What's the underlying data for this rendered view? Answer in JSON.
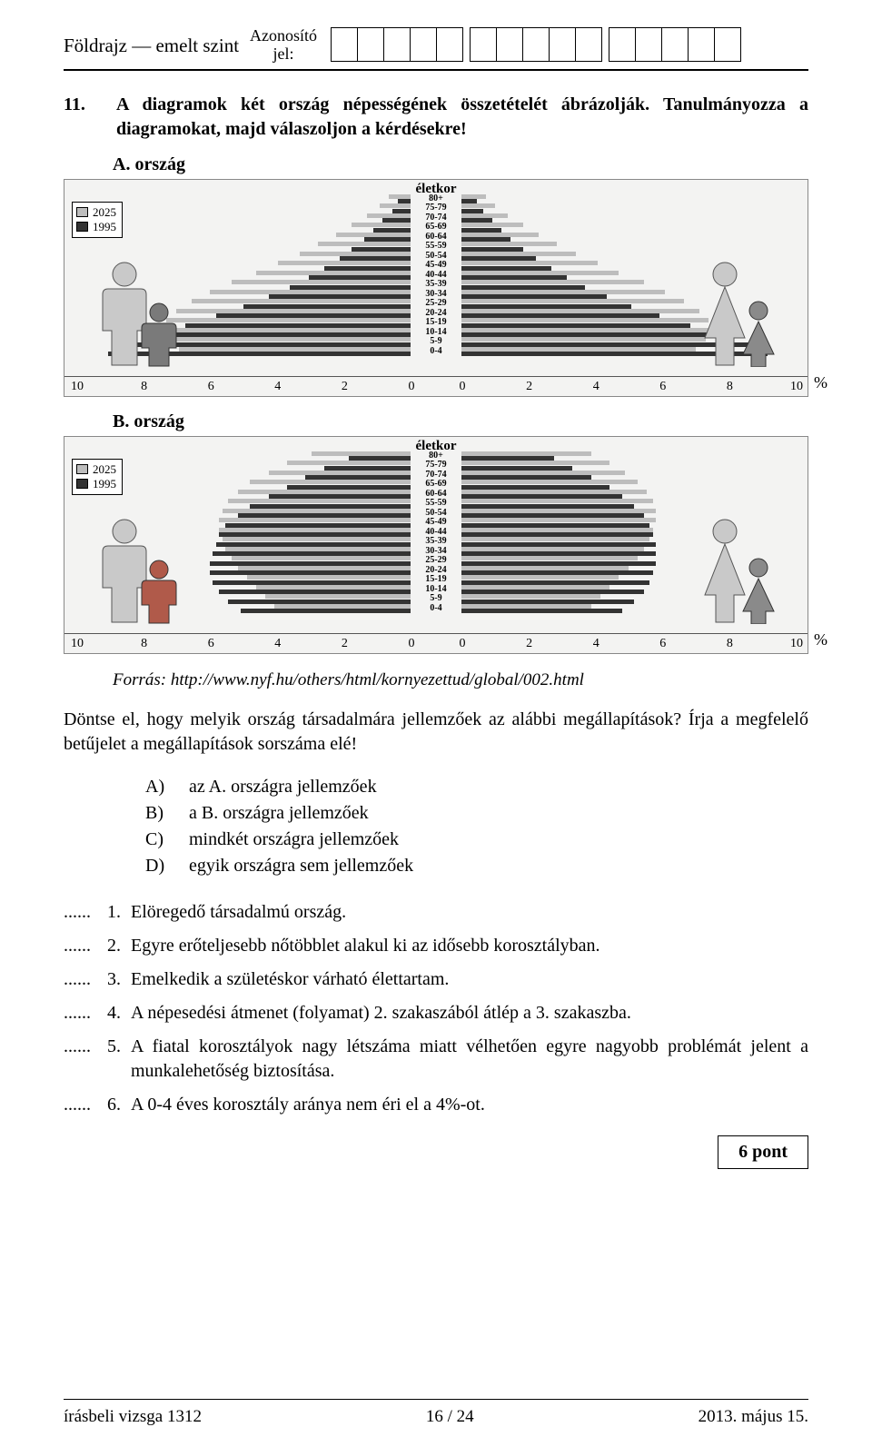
{
  "header": {
    "subject": "Földrajz — emelt szint",
    "id_label_1": "Azonosító",
    "id_label_2": "jel:"
  },
  "task": {
    "number": "11.",
    "prompt": "A diagramok két ország népességének összetételét ábrázolják. Tanulmányozza a diagramokat, majd válaszoljon a kérdésekre!",
    "labelA": "A. ország",
    "labelB": "B. ország"
  },
  "pyramid": {
    "axis_title": "életkor",
    "age_labels": [
      "80+",
      "75-79",
      "70-74",
      "65-69",
      "60-64",
      "55-59",
      "50-54",
      "45-49",
      "40-44",
      "35-39",
      "30-34",
      "25-29",
      "20-24",
      "15-19",
      "10-14",
      "5-9",
      "0-4"
    ],
    "xticks_left": [
      {
        "v": "10",
        "pos": 0
      },
      {
        "v": "8",
        "pos": 20
      },
      {
        "v": "6",
        "pos": 40
      },
      {
        "v": "4",
        "pos": 60
      },
      {
        "v": "2",
        "pos": 80
      },
      {
        "v": "0",
        "pos": 100
      }
    ],
    "xticks_right": [
      {
        "v": "0",
        "pos": 0
      },
      {
        "v": "2",
        "pos": 20
      },
      {
        "v": "4",
        "pos": 40
      },
      {
        "v": "6",
        "pos": 60
      },
      {
        "v": "8",
        "pos": 80
      },
      {
        "v": "10",
        "pos": 100
      }
    ],
    "xlim": [
      0,
      10
    ],
    "pct": "%",
    "legend": {
      "y2025": "2025",
      "y1995": "1995",
      "c2025": "#bdbdbd",
      "c1995": "#333333"
    },
    "A": {
      "male_1995": [
        0.4,
        0.6,
        0.9,
        1.2,
        1.5,
        1.9,
        2.3,
        2.8,
        3.3,
        3.9,
        4.6,
        5.4,
        6.3,
        7.3,
        8.4,
        9.2,
        9.8
      ],
      "male_2025": [
        0.7,
        1.0,
        1.4,
        1.9,
        2.4,
        3.0,
        3.6,
        4.3,
        5.0,
        5.8,
        6.5,
        7.1,
        7.6,
        7.9,
        8.0,
        7.8,
        7.5
      ],
      "female_1995": [
        0.5,
        0.7,
        1.0,
        1.3,
        1.6,
        2.0,
        2.4,
        2.9,
        3.4,
        4.0,
        4.7,
        5.5,
        6.4,
        7.4,
        8.5,
        9.3,
        9.9
      ],
      "female_2025": [
        0.8,
        1.1,
        1.5,
        2.0,
        2.5,
        3.1,
        3.7,
        4.4,
        5.1,
        5.9,
        6.6,
        7.2,
        7.7,
        8.0,
        8.1,
        7.9,
        7.6
      ]
    },
    "B": {
      "male_1995": [
        2.0,
        2.8,
        3.4,
        4.0,
        4.6,
        5.2,
        5.6,
        6.0,
        6.2,
        6.3,
        6.4,
        6.5,
        6.5,
        6.4,
        6.2,
        5.9,
        5.5
      ],
      "male_2025": [
        3.2,
        4.0,
        4.6,
        5.2,
        5.6,
        5.9,
        6.1,
        6.2,
        6.2,
        6.1,
        6.0,
        5.8,
        5.6,
        5.3,
        5.0,
        4.7,
        4.4
      ],
      "female_1995": [
        3.0,
        3.6,
        4.2,
        4.8,
        5.2,
        5.6,
        5.9,
        6.1,
        6.2,
        6.3,
        6.3,
        6.3,
        6.2,
        6.1,
        5.9,
        5.6,
        5.2
      ],
      "female_2025": [
        4.2,
        4.8,
        5.3,
        5.7,
        6.0,
        6.2,
        6.3,
        6.3,
        6.2,
        6.1,
        5.9,
        5.7,
        5.4,
        5.1,
        4.8,
        4.5,
        4.2
      ]
    }
  },
  "source": "Forrás: http://www.nyf.hu/others/html/kornyezettud/global/002.html",
  "question": {
    "p1": "Döntse el, hogy melyik ország társadalmára jellemzőek az alábbi megállapítások? Írja a megfelelő betűjelet a megállapítások sorszáma elé!",
    "options": [
      {
        "k": "A)",
        "t": "az A. országra jellemzőek"
      },
      {
        "k": "B)",
        "t": "a B. országra jellemzőek"
      },
      {
        "k": "C)",
        "t": "mindkét országra jellemzőek"
      },
      {
        "k": "D)",
        "t": "egyik országra sem jellemzőek"
      }
    ],
    "statements": [
      {
        "n": "1.",
        "t": "Elöregedő társadalmú ország."
      },
      {
        "n": "2.",
        "t": "Egyre erőteljesebb nőtöbblet alakul ki az idősebb korosztályban."
      },
      {
        "n": "3.",
        "t": "Emelkedik a születéskor várható élettartam."
      },
      {
        "n": "4.",
        "t": "A népesedési átmenet (folyamat) 2. szakaszából átlép a 3. szakaszba."
      },
      {
        "n": "5.",
        "t": "A fiatal korosztályok nagy létszáma miatt vélhetően egyre nagyobb problémát jelent a munkalehetőség biztosítása."
      },
      {
        "n": "6.",
        "t": "A 0-4 éves korosztály aránya nem éri el a 4%-ot."
      }
    ],
    "blank": "......"
  },
  "points": "6 pont",
  "footer": {
    "left": "írásbeli vizsga 1312",
    "center": "16 / 24",
    "right": "2013. május 15."
  }
}
